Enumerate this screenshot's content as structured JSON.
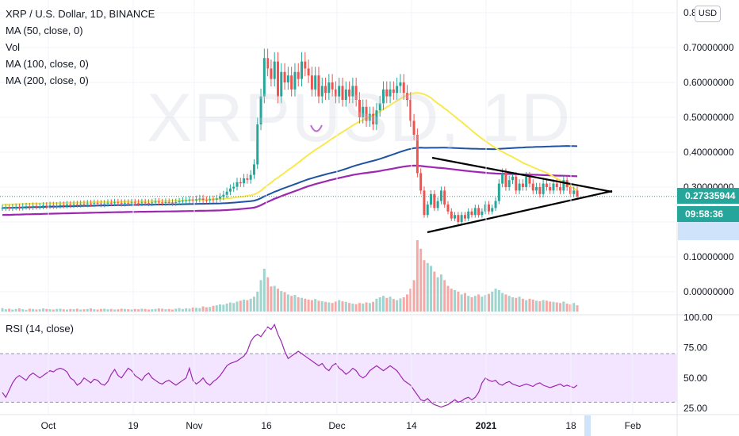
{
  "header": {
    "title": "XRP / U.S. Dollar, 1D, BINANCE",
    "ma50_label": "MA (50, close, 0)",
    "vol_label": "Vol",
    "ma100_label": "MA (100, close, 0)",
    "ma200_label": "MA (200, close, 0)",
    "rsi_label": "RSI (14, close)",
    "currency": "USD",
    "watermark": "XRPUSD, 1D"
  },
  "price_label": {
    "value": "0.27335944",
    "countdown": "09:58:36"
  },
  "colors": {
    "up": "#26a69a",
    "down": "#ef5350",
    "vol_up": "#9fd4cf",
    "vol_down": "#f5a9a7",
    "ma50": "#f7e94e",
    "ma100": "#1e52a3",
    "ma200": "#9c27b0",
    "rsi": "#9c27b0",
    "rsi_band": "#f3e5ff",
    "trend": "#000000"
  },
  "chart_data": [
    {
      "type": "candlestick",
      "title": "XRP / U.S. Dollar, 1D, BINANCE",
      "ylim": [
        -0.05,
        0.85
      ],
      "y_ticks": [
        "0.8",
        "0.70000000",
        "0.60000000",
        "0.50000000",
        "0.40000000",
        "0.30000000",
        "0.20000000",
        "0.10000000",
        "0.00000000"
      ],
      "x_ticks": [
        "Oct",
        "19",
        "Nov",
        "16",
        "Dec",
        "14",
        "2021",
        "18",
        "Feb"
      ],
      "last_price": 0.27335944,
      "close": [
        0.24,
        0.241,
        0.24,
        0.242,
        0.243,
        0.241,
        0.244,
        0.245,
        0.243,
        0.246,
        0.244,
        0.245,
        0.247,
        0.246,
        0.248,
        0.246,
        0.247,
        0.249,
        0.248,
        0.25,
        0.249,
        0.251,
        0.25,
        0.252,
        0.251,
        0.253,
        0.252,
        0.254,
        0.253,
        0.251,
        0.253,
        0.255,
        0.254,
        0.256,
        0.255,
        0.253,
        0.255,
        0.254,
        0.256,
        0.255,
        0.254,
        0.256,
        0.255,
        0.254,
        0.256,
        0.258,
        0.256,
        0.255,
        0.257,
        0.256,
        0.255,
        0.257,
        0.259,
        0.261,
        0.262,
        0.264,
        0.262,
        0.265,
        0.267,
        0.263,
        0.262,
        0.265,
        0.264,
        0.267,
        0.272,
        0.278,
        0.287,
        0.296,
        0.301,
        0.314,
        0.311,
        0.325,
        0.321,
        0.335,
        0.365,
        0.48,
        0.56,
        0.67,
        0.64,
        0.61,
        0.66,
        0.56,
        0.63,
        0.6,
        0.62,
        0.58,
        0.63,
        0.61,
        0.66,
        0.64,
        0.62,
        0.58,
        0.62,
        0.56,
        0.59,
        0.57,
        0.6,
        0.58,
        0.56,
        0.59,
        0.55,
        0.58,
        0.56,
        0.59,
        0.55,
        0.5,
        0.53,
        0.49,
        0.51,
        0.48,
        0.52,
        0.54,
        0.58,
        0.56,
        0.58,
        0.57,
        0.59,
        0.6,
        0.57,
        0.55,
        0.49,
        0.45,
        0.34,
        0.29,
        0.22,
        0.25,
        0.28,
        0.24,
        0.26,
        0.29,
        0.25,
        0.23,
        0.21,
        0.22,
        0.2,
        0.22,
        0.21,
        0.23,
        0.22,
        0.24,
        0.22,
        0.23,
        0.25,
        0.23,
        0.24,
        0.26,
        0.31,
        0.34,
        0.3,
        0.32,
        0.33,
        0.29,
        0.31,
        0.3,
        0.33,
        0.31,
        0.29,
        0.3,
        0.28,
        0.31,
        0.3,
        0.29,
        0.31,
        0.3,
        0.29,
        0.32,
        0.3,
        0.28,
        0.29,
        0.273
      ]
    },
    {
      "type": "bar",
      "title": "Vol",
      "values": [
        12,
        8,
        10,
        7,
        9,
        11,
        8,
        6,
        10,
        9,
        7,
        8,
        11,
        9,
        8,
        7,
        9,
        10,
        8,
        7,
        9,
        8,
        10,
        7,
        8,
        9,
        11,
        8,
        7,
        9,
        10,
        8,
        9,
        7,
        8,
        10,
        9,
        8,
        7,
        9,
        8,
        10,
        9,
        7,
        8,
        9,
        11,
        10,
        8,
        9,
        7,
        10,
        12,
        9,
        11,
        10,
        14,
        13,
        12,
        18,
        15,
        16,
        20,
        22,
        25,
        24,
        28,
        32,
        30,
        35,
        38,
        42,
        40,
        45,
        52,
        70,
        110,
        150,
        120,
        88,
        90,
        80,
        72,
        68,
        60,
        55,
        58,
        50,
        48,
        45,
        42,
        40,
        44,
        38,
        36,
        34,
        32,
        30,
        35,
        40,
        36,
        34,
        30,
        28,
        26,
        30,
        28,
        32,
        30,
        34,
        45,
        50,
        55,
        48,
        52,
        44,
        40,
        46,
        50,
        60,
        80,
        110,
        250,
        220,
        180,
        170,
        160,
        140,
        120,
        130,
        110,
        90,
        80,
        75,
        70,
        60,
        65,
        55,
        50,
        55,
        60,
        52,
        58,
        62,
        70,
        80,
        75,
        65,
        60,
        55,
        50,
        48,
        52,
        45,
        40,
        45,
        42,
        38,
        36,
        40,
        38,
        35,
        34,
        32,
        30,
        35,
        28,
        25,
        30,
        22
      ]
    },
    {
      "type": "line",
      "title": "RSI (14, close)",
      "ylim": [
        20,
        100
      ],
      "y_ticks": [
        "100.00",
        "75.00",
        "50.00",
        "25.00"
      ],
      "values": [
        38,
        34,
        40,
        46,
        50,
        52,
        50,
        48,
        52,
        54,
        52,
        50,
        52,
        54,
        56,
        55,
        57,
        58,
        57,
        55,
        50,
        48,
        44,
        46,
        50,
        48,
        46,
        49,
        48,
        45,
        44,
        47,
        53,
        57,
        52,
        50,
        54,
        58,
        56,
        52,
        50,
        48,
        52,
        54,
        50,
        48,
        46,
        45,
        47,
        48,
        46,
        44,
        46,
        48,
        50,
        58,
        48,
        45,
        47,
        50,
        46,
        44,
        47,
        49,
        52,
        56,
        60,
        62,
        63,
        64,
        66,
        68,
        72,
        80,
        84,
        86,
        84,
        88,
        92,
        90,
        94,
        86,
        80,
        72,
        66,
        68,
        70,
        72,
        70,
        68,
        66,
        64,
        62,
        60,
        62,
        58,
        56,
        60,
        62,
        58,
        56,
        53,
        55,
        58,
        56,
        52,
        50,
        52,
        56,
        58,
        60,
        58,
        56,
        58,
        60,
        58,
        56,
        52,
        48,
        46,
        44,
        40,
        36,
        32,
        31,
        33,
        30,
        28,
        27,
        26,
        27,
        28,
        30,
        32,
        30,
        31,
        33,
        34,
        32,
        34,
        38,
        46,
        50,
        48,
        47,
        48,
        45,
        44,
        46,
        47,
        45,
        44,
        43,
        44,
        45,
        44,
        43,
        45,
        46,
        44,
        43,
        42,
        43,
        44,
        45,
        43,
        44,
        43,
        42,
        44
      ]
    }
  ]
}
